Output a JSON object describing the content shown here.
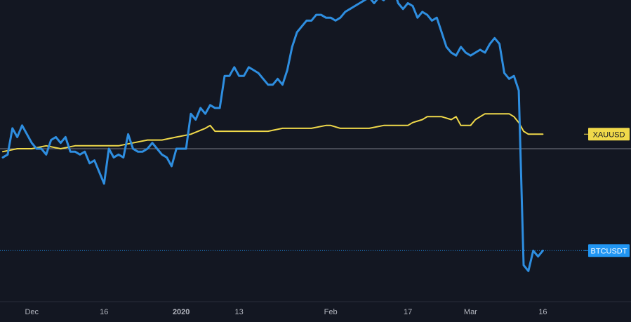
{
  "colors": {
    "background": "#131722",
    "btc_line": "#2e8ee0",
    "xau_line": "#f0d94a",
    "baseline": "#787b86",
    "btc_label_bg": "#2196f3",
    "xau_label_bg": "#f0d94a",
    "axis_text": "#b2b5be"
  },
  "chart_data": {
    "type": "line",
    "title": "",
    "xlabel": "",
    "ylabel": "",
    "x_ticks": [
      "Dec",
      "16",
      "2020",
      "13",
      "Feb",
      "17",
      "Mar",
      "16"
    ],
    "x_tick_dates": [
      "2019-12-01",
      "2019-12-16",
      "2020-01-01",
      "2020-01-13",
      "2020-02-01",
      "2020-02-17",
      "2020-03-01",
      "2020-03-16"
    ],
    "y_unit": "percent change",
    "ylim": [
      -50,
      60
    ],
    "grid": false,
    "series": [
      {
        "name": "BTCUSDT",
        "color": "#2e8ee0",
        "points": [
          [
            "2019-11-25",
            -3
          ],
          [
            "2019-11-26",
            -2
          ],
          [
            "2019-11-27",
            7
          ],
          [
            "2019-11-28",
            4
          ],
          [
            "2019-11-29",
            8
          ],
          [
            "2019-11-30",
            5
          ],
          [
            "2019-12-01",
            2
          ],
          [
            "2019-12-02",
            0
          ],
          [
            "2019-12-03",
            0
          ],
          [
            "2019-12-04",
            -2
          ],
          [
            "2019-12-05",
            3
          ],
          [
            "2019-12-06",
            4
          ],
          [
            "2019-12-07",
            2
          ],
          [
            "2019-12-08",
            4
          ],
          [
            "2019-12-09",
            -1
          ],
          [
            "2019-12-10",
            -1
          ],
          [
            "2019-12-11",
            -2
          ],
          [
            "2019-12-12",
            -1
          ],
          [
            "2019-12-13",
            -5
          ],
          [
            "2019-12-14",
            -4
          ],
          [
            "2019-12-15",
            -8
          ],
          [
            "2019-12-16",
            -12
          ],
          [
            "2019-12-17",
            0
          ],
          [
            "2019-12-18",
            -3
          ],
          [
            "2019-12-19",
            -2
          ],
          [
            "2019-12-20",
            -3
          ],
          [
            "2019-12-21",
            5
          ],
          [
            "2019-12-22",
            0
          ],
          [
            "2019-12-23",
            -1
          ],
          [
            "2019-12-24",
            -1
          ],
          [
            "2019-12-25",
            0
          ],
          [
            "2019-12-26",
            2
          ],
          [
            "2019-12-27",
            0
          ],
          [
            "2019-12-28",
            -2
          ],
          [
            "2019-12-29",
            -3
          ],
          [
            "2019-12-30",
            -6
          ],
          [
            "2019-12-31",
            0
          ],
          [
            "2020-01-01",
            0
          ],
          [
            "2020-01-02",
            0
          ],
          [
            "2020-01-03",
            12
          ],
          [
            "2020-01-04",
            10
          ],
          [
            "2020-01-05",
            14
          ],
          [
            "2020-01-06",
            12
          ],
          [
            "2020-01-07",
            15
          ],
          [
            "2020-01-08",
            14
          ],
          [
            "2020-01-09",
            14
          ],
          [
            "2020-01-10",
            25
          ],
          [
            "2020-01-11",
            25
          ],
          [
            "2020-01-12",
            28
          ],
          [
            "2020-01-13",
            25
          ],
          [
            "2020-01-14",
            25
          ],
          [
            "2020-01-15",
            28
          ],
          [
            "2020-01-16",
            27
          ],
          [
            "2020-01-17",
            26
          ],
          [
            "2020-01-18",
            24
          ],
          [
            "2020-01-19",
            22
          ],
          [
            "2020-01-20",
            22
          ],
          [
            "2020-01-21",
            24
          ],
          [
            "2020-01-22",
            22
          ],
          [
            "2020-01-23",
            27
          ],
          [
            "2020-01-24",
            35
          ],
          [
            "2020-01-25",
            40
          ],
          [
            "2020-01-26",
            42
          ],
          [
            "2020-01-27",
            44
          ],
          [
            "2020-01-28",
            44
          ],
          [
            "2020-01-29",
            46
          ],
          [
            "2020-01-30",
            46
          ],
          [
            "2020-01-31",
            45
          ],
          [
            "2020-02-01",
            45
          ],
          [
            "2020-02-02",
            44
          ],
          [
            "2020-02-03",
            45
          ],
          [
            "2020-02-04",
            47
          ],
          [
            "2020-02-05",
            48
          ],
          [
            "2020-02-06",
            49
          ],
          [
            "2020-02-07",
            50
          ],
          [
            "2020-02-08",
            51
          ],
          [
            "2020-02-09",
            52
          ],
          [
            "2020-02-10",
            50
          ],
          [
            "2020-02-11",
            52
          ],
          [
            "2020-02-12",
            51
          ],
          [
            "2020-02-13",
            53
          ],
          [
            "2020-02-14",
            55
          ],
          [
            "2020-02-15",
            50
          ],
          [
            "2020-02-16",
            48
          ],
          [
            "2020-02-17",
            50
          ],
          [
            "2020-02-18",
            49
          ],
          [
            "2020-02-19",
            45
          ],
          [
            "2020-02-20",
            47
          ],
          [
            "2020-02-21",
            46
          ],
          [
            "2020-02-22",
            44
          ],
          [
            "2020-02-23",
            45
          ],
          [
            "2020-02-24",
            40
          ],
          [
            "2020-02-25",
            35
          ],
          [
            "2020-02-26",
            33
          ],
          [
            "2020-02-27",
            32
          ],
          [
            "2020-02-28",
            35
          ],
          [
            "2020-02-29",
            33
          ],
          [
            "2020-03-01",
            32
          ],
          [
            "2020-03-02",
            33
          ],
          [
            "2020-03-03",
            34
          ],
          [
            "2020-03-04",
            33
          ],
          [
            "2020-03-05",
            36
          ],
          [
            "2020-03-06",
            38
          ],
          [
            "2020-03-07",
            36
          ],
          [
            "2020-03-08",
            26
          ],
          [
            "2020-03-09",
            24
          ],
          [
            "2020-03-10",
            25
          ],
          [
            "2020-03-11",
            20
          ],
          [
            "2020-03-12",
            -40
          ],
          [
            "2020-03-13",
            -42
          ],
          [
            "2020-03-14",
            -35
          ],
          [
            "2020-03-15",
            -37
          ],
          [
            "2020-03-16",
            -35
          ]
        ]
      },
      {
        "name": "XAUUSD",
        "color": "#f0d94a",
        "points": [
          [
            "2019-11-25",
            -1
          ],
          [
            "2019-11-28",
            0
          ],
          [
            "2019-12-01",
            0
          ],
          [
            "2019-12-04",
            1
          ],
          [
            "2019-12-07",
            0
          ],
          [
            "2019-12-10",
            1
          ],
          [
            "2019-12-13",
            1
          ],
          [
            "2019-12-16",
            1
          ],
          [
            "2019-12-19",
            1
          ],
          [
            "2019-12-22",
            2
          ],
          [
            "2019-12-25",
            3
          ],
          [
            "2019-12-28",
            3
          ],
          [
            "2019-12-31",
            4
          ],
          [
            "2020-01-03",
            5
          ],
          [
            "2020-01-06",
            7
          ],
          [
            "2020-01-07",
            8
          ],
          [
            "2020-01-08",
            6
          ],
          [
            "2020-01-10",
            6
          ],
          [
            "2020-01-13",
            6
          ],
          [
            "2020-01-16",
            6
          ],
          [
            "2020-01-19",
            6
          ],
          [
            "2020-01-22",
            7
          ],
          [
            "2020-01-25",
            7
          ],
          [
            "2020-01-28",
            7
          ],
          [
            "2020-01-31",
            8
          ],
          [
            "2020-02-01",
            8
          ],
          [
            "2020-02-03",
            7
          ],
          [
            "2020-02-06",
            7
          ],
          [
            "2020-02-09",
            7
          ],
          [
            "2020-02-12",
            8
          ],
          [
            "2020-02-15",
            8
          ],
          [
            "2020-02-17",
            8
          ],
          [
            "2020-02-18",
            9
          ],
          [
            "2020-02-20",
            10
          ],
          [
            "2020-02-21",
            11
          ],
          [
            "2020-02-24",
            11
          ],
          [
            "2020-02-26",
            10
          ],
          [
            "2020-02-27",
            11
          ],
          [
            "2020-02-28",
            8
          ],
          [
            "2020-03-01",
            8
          ],
          [
            "2020-03-02",
            10
          ],
          [
            "2020-03-03",
            11
          ],
          [
            "2020-03-04",
            12
          ],
          [
            "2020-03-06",
            12
          ],
          [
            "2020-03-09",
            12
          ],
          [
            "2020-03-10",
            11
          ],
          [
            "2020-03-11",
            9
          ],
          [
            "2020-03-12",
            6
          ],
          [
            "2020-03-13",
            5
          ],
          [
            "2020-03-16",
            5
          ]
        ]
      }
    ],
    "labels": {
      "xau": "XAUUSD",
      "btc": "BTCUSDT"
    }
  }
}
